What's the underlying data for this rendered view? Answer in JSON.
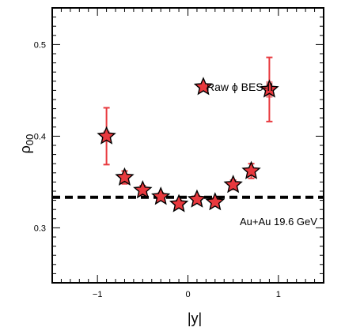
{
  "chart_data": {
    "type": "scatter",
    "xlabel": "|y|",
    "ylabel": "ρ",
    "ylabel_sub": "00",
    "xlim": [
      -1.5,
      1.5
    ],
    "ylim": [
      0.24,
      0.54
    ],
    "x_ticks": [
      -1,
      0,
      1
    ],
    "x_tick_labels": [
      "−1",
      "0",
      "1"
    ],
    "y_ticks": [
      0.3,
      0.4,
      0.5
    ],
    "y_tick_labels": [
      "0.3",
      "0.4",
      "0.5"
    ],
    "grid": false,
    "legend": {
      "text": "Raw ϕ BES-II",
      "position": "upper-center"
    },
    "annotation": "Au+Au 19.6 GeV",
    "reference_line": {
      "y": 0.3333,
      "style": "dashed"
    },
    "series": [
      {
        "marker": "star",
        "color": "#e8393e",
        "x": [
          -0.9,
          -0.7,
          -0.5,
          -0.3,
          -0.1,
          0.1,
          0.3,
          0.5,
          0.7,
          0.9
        ],
        "y": [
          0.4,
          0.355,
          0.341,
          0.334,
          0.326,
          0.331,
          0.328,
          0.347,
          0.362,
          0.451
        ],
        "err": [
          0.031,
          0.007,
          0.005,
          0.004,
          0.004,
          0.004,
          0.004,
          0.005,
          0.008,
          0.035
        ],
        "sys": [
          0.006,
          0.003,
          0.002,
          0.002,
          0.002,
          0.002,
          0.002,
          0.002,
          0.004,
          0.009
        ]
      }
    ]
  }
}
